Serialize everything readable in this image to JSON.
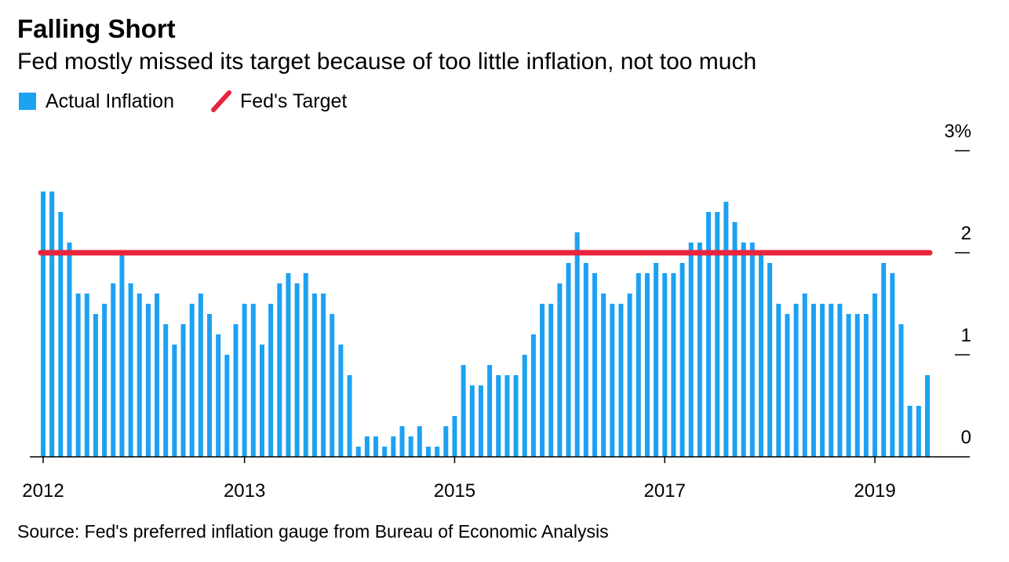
{
  "chart_data": {
    "type": "bar",
    "title": "Falling Short",
    "subtitle": "Fed mostly missed its target because of too little inflation, not too much",
    "source": "Source: Fed's preferred inflation gauge from Bureau of Economic Analysis",
    "categories": [
      "2012",
      null,
      null,
      null,
      null,
      null,
      null,
      null,
      null,
      null,
      null,
      null,
      null,
      null,
      null,
      null,
      null,
      null,
      null,
      null,
      null,
      null,
      null,
      "2013",
      null,
      null,
      null,
      null,
      null,
      null,
      null,
      null,
      null,
      null,
      null,
      null,
      null,
      null,
      null,
      null,
      null,
      null,
      null,
      null,
      null,
      null,
      null,
      "2015",
      null,
      null,
      null,
      null,
      null,
      null,
      null,
      null,
      null,
      null,
      null,
      null,
      null,
      null,
      null,
      null,
      null,
      null,
      null,
      null,
      null,
      null,
      null,
      "2017",
      null,
      null,
      null,
      null,
      null,
      null,
      null,
      null,
      null,
      null,
      null,
      null,
      null,
      null,
      null,
      null,
      null,
      null,
      null,
      null,
      null,
      null,
      null,
      "2019",
      null,
      null,
      null,
      null,
      null,
      null
    ],
    "series": [
      {
        "name": "Actual Inflation",
        "color": "#1da1f2",
        "values": [
          2.6,
          2.6,
          2.4,
          2.1,
          1.6,
          1.6,
          1.4,
          1.5,
          1.7,
          2.0,
          1.7,
          1.6,
          1.5,
          1.6,
          1.3,
          1.1,
          1.3,
          1.5,
          1.6,
          1.4,
          1.2,
          1.0,
          1.3,
          1.5,
          1.5,
          1.1,
          1.5,
          1.7,
          1.8,
          1.7,
          1.8,
          1.6,
          1.6,
          1.4,
          1.1,
          0.8,
          0.1,
          0.2,
          0.2,
          0.1,
          0.2,
          0.3,
          0.2,
          0.3,
          0.1,
          0.1,
          0.3,
          0.4,
          0.9,
          0.7,
          0.7,
          0.9,
          0.8,
          0.8,
          0.8,
          1.0,
          1.2,
          1.5,
          1.5,
          1.7,
          1.9,
          2.2,
          1.9,
          1.8,
          1.6,
          1.5,
          1.5,
          1.6,
          1.8,
          1.8,
          1.9,
          1.8,
          1.8,
          1.9,
          2.1,
          2.1,
          2.4,
          2.4,
          2.5,
          2.3,
          2.1,
          2.1,
          2.0,
          1.9,
          1.5,
          1.4,
          1.5,
          1.6,
          1.5,
          1.5,
          1.5,
          1.5,
          1.4,
          1.4,
          1.4,
          1.6,
          1.9,
          1.8,
          1.3,
          0.5,
          0.5,
          0.8
        ]
      }
    ],
    "target": {
      "name": "Fed's Target",
      "value": 2,
      "color": "#e8243c"
    },
    "ylim": [
      0,
      3
    ],
    "yticks": [
      0,
      1,
      2,
      {
        "value": 3,
        "label": "3%"
      }
    ]
  }
}
